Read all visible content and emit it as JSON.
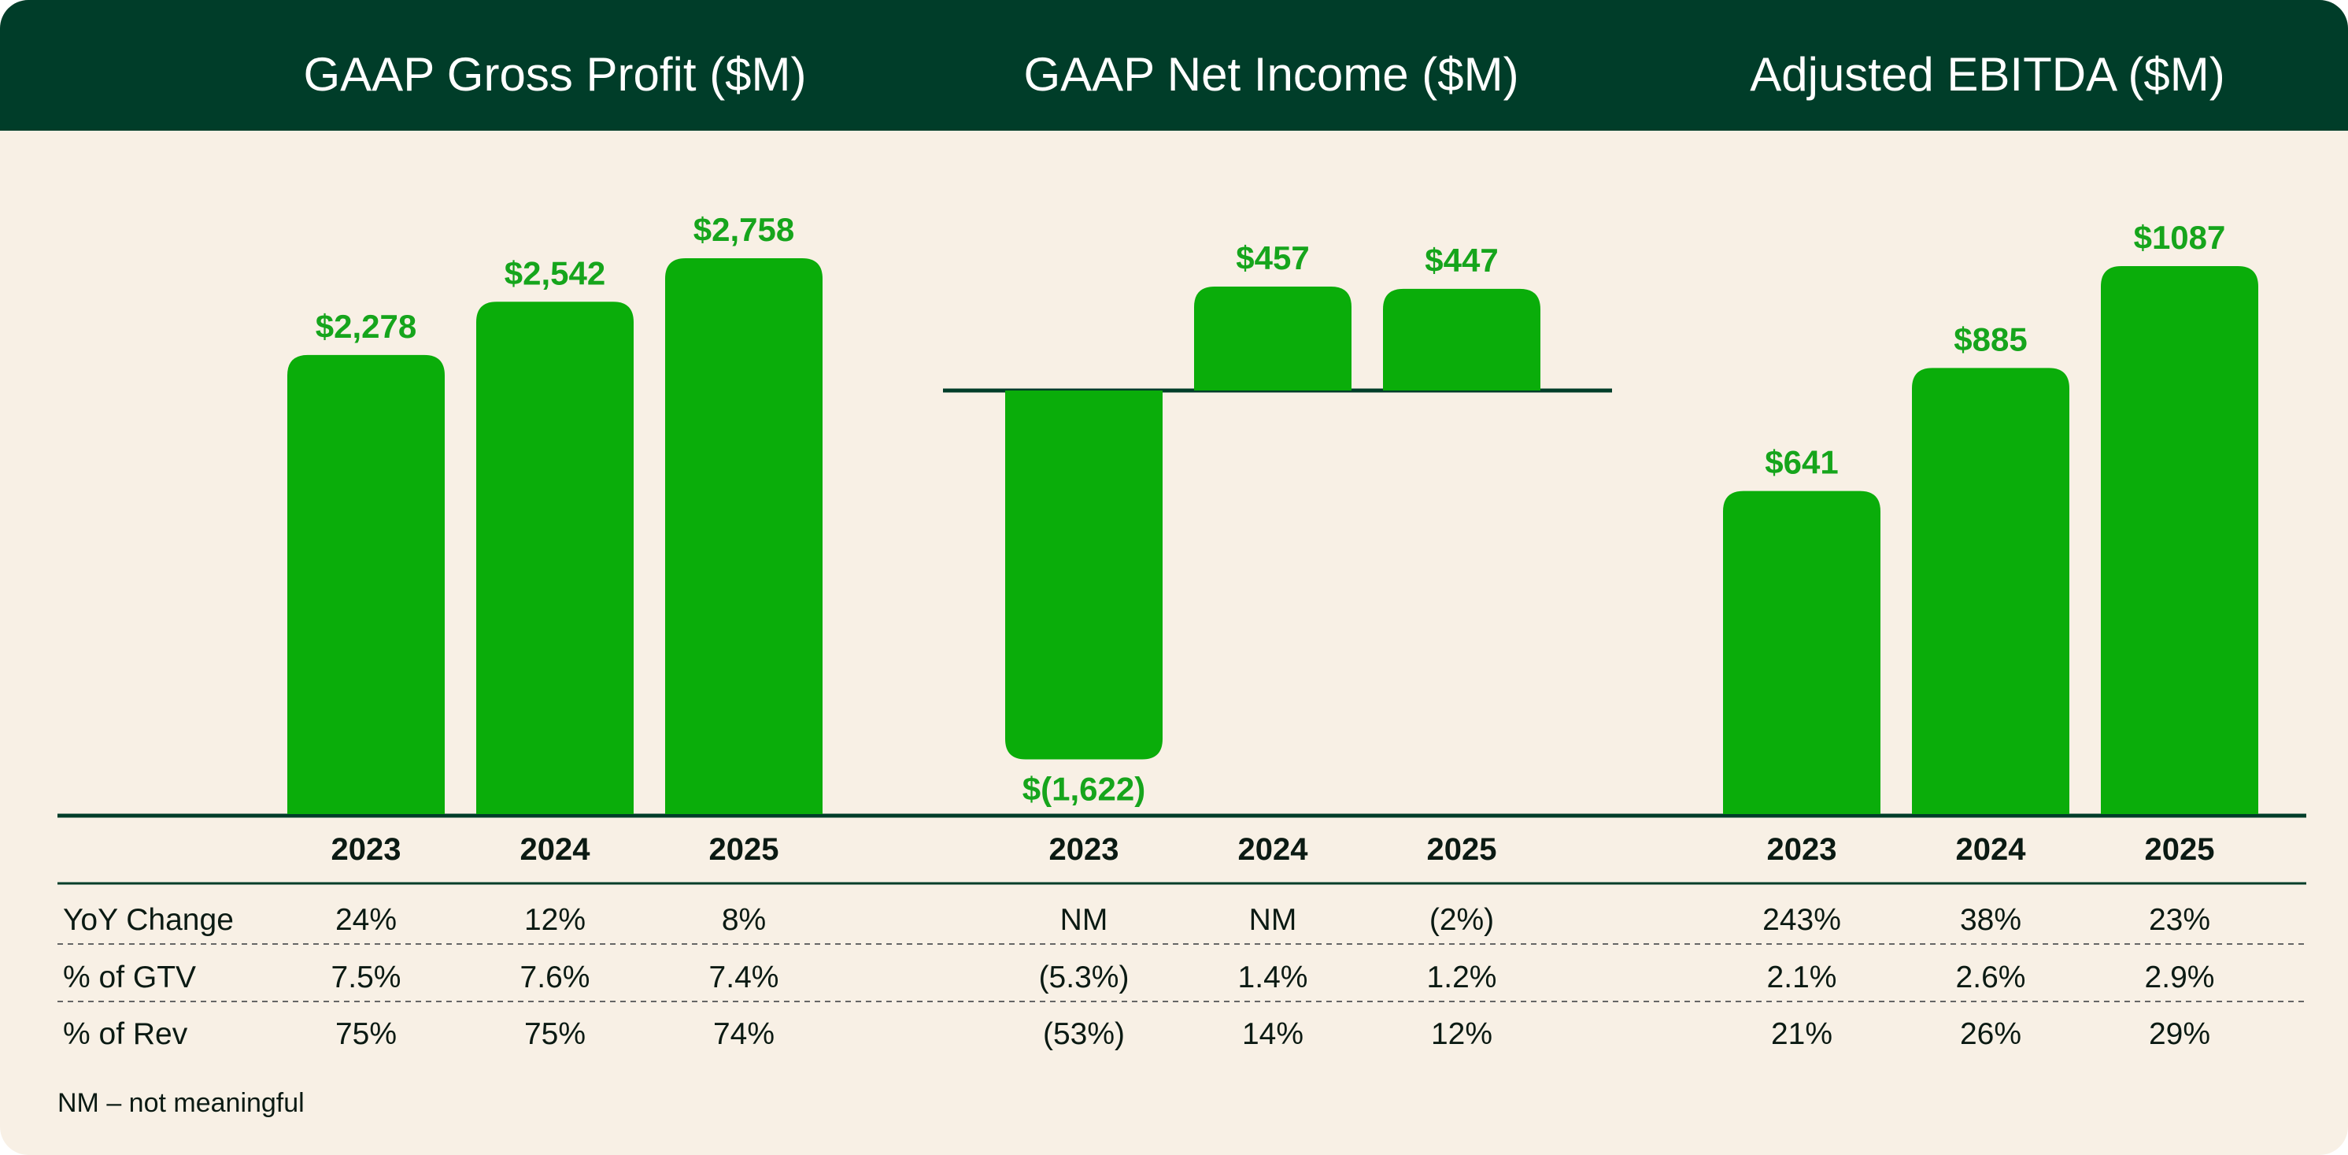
{
  "chart_data": [
    {
      "type": "bar",
      "title": "GAAP Gross Profit ($M)",
      "categories": [
        "2023",
        "2024",
        "2025"
      ],
      "values": [
        2278,
        2542,
        2758
      ],
      "value_labels": [
        "$2,278",
        "$2,542",
        "$2,758"
      ],
      "ylim": [
        0,
        2800
      ],
      "rows": [
        {
          "label": "YoY Change",
          "values": [
            "24%",
            "12%",
            "8%"
          ]
        },
        {
          "label": "% of GTV",
          "values": [
            "7.5%",
            "7.6%",
            "7.4%"
          ]
        },
        {
          "label": "% of Rev",
          "values": [
            "75%",
            "75%",
            "74%"
          ]
        }
      ]
    },
    {
      "type": "bar",
      "title": "GAAP Net Income ($M)",
      "categories": [
        "2023",
        "2024",
        "2025"
      ],
      "values": [
        -1622,
        457,
        447
      ],
      "value_labels": [
        "$(1,622)",
        "$457",
        "$447"
      ],
      "ylim": [
        -1700,
        600
      ],
      "rows": [
        {
          "label": "YoY Change",
          "values": [
            "NM",
            "NM",
            "(2%)"
          ]
        },
        {
          "label": "% of GTV",
          "values": [
            "(5.3%)",
            "1.4%",
            "1.2%"
          ]
        },
        {
          "label": "% of Rev",
          "values": [
            "(53%)",
            "14%",
            "12%"
          ]
        }
      ]
    },
    {
      "type": "bar",
      "title": "Adjusted EBITDA ($M)",
      "categories": [
        "2023",
        "2024",
        "2025"
      ],
      "values": [
        641,
        885,
        1087
      ],
      "value_labels": [
        "$641",
        "$885",
        "$1087"
      ],
      "ylim": [
        0,
        1100
      ],
      "rows": [
        {
          "label": "YoY Change",
          "values": [
            "243%",
            "38%",
            "23%"
          ]
        },
        {
          "label": "% of GTV",
          "values": [
            "2.1%",
            "2.6%",
            "2.9%"
          ]
        },
        {
          "label": "% of Rev",
          "values": [
            "21%",
            "26%",
            "29%"
          ]
        }
      ]
    }
  ],
  "footnote": "NM – not meaningful",
  "colors": {
    "header_bg": "#003d29",
    "card_bg": "#f8f0e5",
    "bar": "#0aad0a",
    "value_text": "#16a51c",
    "text": "#0b1a13"
  }
}
